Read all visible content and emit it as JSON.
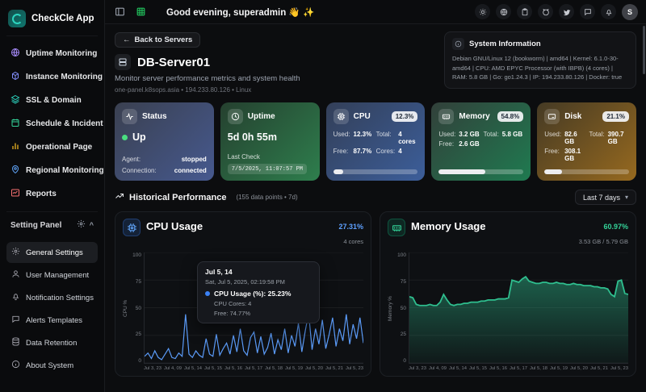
{
  "app": {
    "name": "CheckCle App"
  },
  "sidebar": {
    "items": [
      {
        "label": "Uptime Monitoring",
        "icon": "globe-icon"
      },
      {
        "label": "Instance Monitoring",
        "icon": "cube-icon"
      },
      {
        "label": "SSL & Domain",
        "icon": "layers-icon"
      },
      {
        "label": "Schedule & Incident",
        "icon": "calendar-icon"
      },
      {
        "label": "Operational Page",
        "icon": "bar-chart-icon"
      },
      {
        "label": "Regional Monitoring",
        "icon": "map-pin-icon"
      },
      {
        "label": "Reports",
        "icon": "report-icon"
      }
    ],
    "settings_header": "Setting Panel",
    "settings_items": [
      {
        "label": "General Settings",
        "icon": "gear-icon",
        "active": true
      },
      {
        "label": "User Management",
        "icon": "user-icon"
      },
      {
        "label": "Notification Settings",
        "icon": "bell-icon"
      },
      {
        "label": "Alerts Templates",
        "icon": "chat-icon"
      },
      {
        "label": "Data Retention",
        "icon": "database-icon"
      },
      {
        "label": "About System",
        "icon": "info-icon"
      }
    ]
  },
  "topbar": {
    "greeting": "Good evening, superadmin 👋 ✨",
    "avatar_initial": "S"
  },
  "server": {
    "back_button": "Back to Servers",
    "back_arrow": "←",
    "title": "DB-Server01",
    "subtitle": "Monitor server performance metrics and system health",
    "meta": "one-panel.k8sops.asia • 194.233.80.126 • Linux",
    "system_info_title": "System Information",
    "system_info": "Debian GNU/Linux 12 (bookworm) | amd64 | Kernel: 6.1.0-30-amd64 | CPU: AMD EPYC Processor (with IBPB) (4 cores) | RAM: 5.8 GB | Go: go1.24.3 | IP: 194.233.80.126 | Docker: true"
  },
  "cards": {
    "status": {
      "title": "Status",
      "value": "Up",
      "agent_label": "Agent:",
      "agent_value": "stopped",
      "connection_label": "Connection:",
      "connection_value": "connected"
    },
    "uptime": {
      "title": "Uptime",
      "value": "5d 0h 55m",
      "last_check_label": "Last Check",
      "last_check_value": "7/5/2025, 11:07:57 PM"
    },
    "cpu": {
      "title": "CPU",
      "badge": "12.3%",
      "used_label": "Used:",
      "used": "12.3%",
      "total_label": "Total:",
      "total": "4 cores",
      "free_label": "Free:",
      "free": "87.7%",
      "cores_label": "Cores:",
      "cores": "4",
      "percent": 12.3
    },
    "memory": {
      "title": "Memory",
      "badge": "54.8%",
      "used_label": "Used:",
      "used": "3.2 GB",
      "total_label": "Total:",
      "total": "5.8 GB",
      "free_label": "Free:",
      "free": "2.6 GB",
      "percent": 54.8
    },
    "disk": {
      "title": "Disk",
      "badge": "21.1%",
      "used_label": "Used:",
      "used": "82.6 GB",
      "total_label": "Total:",
      "total": "390.7 GB",
      "free_label": "Free:",
      "free": "308.1 GB",
      "percent": 21.1
    }
  },
  "history": {
    "title": "Historical Performance",
    "meta": "(155 data points • 7d)",
    "range_selector": "Last 7 days"
  },
  "chart_data": [
    {
      "type": "line",
      "title": "CPU Usage",
      "current": "27.31%",
      "subtitle": "4 cores",
      "ylabel": "CPU %",
      "ylim": [
        0,
        100
      ],
      "yticks": [
        100,
        75,
        50,
        25,
        0
      ],
      "grid": true,
      "color": "#5b9bf8",
      "x_labels": [
        "Jul 3, 23",
        "Jul 4, 09",
        "Jul 5, 14",
        "Jul 5, 15",
        "Jul 5, 16",
        "Jul 5, 17",
        "Jul 5, 18",
        "Jul 5, 19",
        "Jul 5, 20",
        "Jul 5, 21",
        "Jul 5, 23"
      ],
      "values": [
        6,
        9,
        4,
        11,
        5,
        3,
        8,
        13,
        5,
        4,
        9,
        6,
        44,
        8,
        5,
        11,
        7,
        5,
        22,
        8,
        6,
        26,
        7,
        13,
        18,
        8,
        25,
        10,
        31,
        11,
        7,
        23,
        28,
        9,
        24,
        8,
        14,
        27,
        8,
        21,
        12,
        31,
        9,
        25,
        15,
        36,
        10,
        29,
        45,
        12,
        31,
        17,
        39,
        13,
        26,
        41,
        15,
        31,
        20,
        44,
        17,
        35,
        22,
        41,
        18
      ],
      "tooltip": {
        "title": "Jul 5, 14",
        "date": "Sat, Jul 5, 2025, 02:19:58 PM",
        "series": "CPU Usage (%): 25.23%",
        "cores": "CPU Cores: 4",
        "free": "Free: 74.77%"
      }
    },
    {
      "type": "area",
      "title": "Memory Usage",
      "current": "60.97%",
      "subtitle": "3.53 GB / 5.79 GB",
      "ylabel": "Memory %",
      "ylim": [
        0,
        100
      ],
      "yticks": [
        100,
        75,
        50,
        25,
        0
      ],
      "grid": true,
      "color": "#2fbf8f",
      "x_labels": [
        "Jul 3, 23",
        "Jul 4, 09",
        "Jul 5, 14",
        "Jul 5, 15",
        "Jul 5, 16",
        "Jul 5, 17",
        "Jul 5, 18",
        "Jul 5, 19",
        "Jul 5, 20",
        "Jul 5, 21",
        "Jul 5, 23"
      ],
      "values": [
        60,
        59,
        53,
        52,
        52,
        52,
        53,
        52,
        52,
        55,
        62,
        57,
        53,
        52,
        53,
        53,
        54,
        54,
        55,
        55,
        55,
        56,
        56,
        57,
        57,
        57,
        58,
        58,
        58,
        59,
        75,
        74,
        73,
        76,
        78,
        74,
        73,
        72,
        72,
        73,
        73,
        72,
        72,
        73,
        72,
        72,
        71,
        71,
        72,
        71,
        71,
        70,
        70,
        70,
        69,
        69,
        68,
        68,
        67,
        62,
        60,
        74,
        75,
        63,
        62
      ]
    }
  ]
}
